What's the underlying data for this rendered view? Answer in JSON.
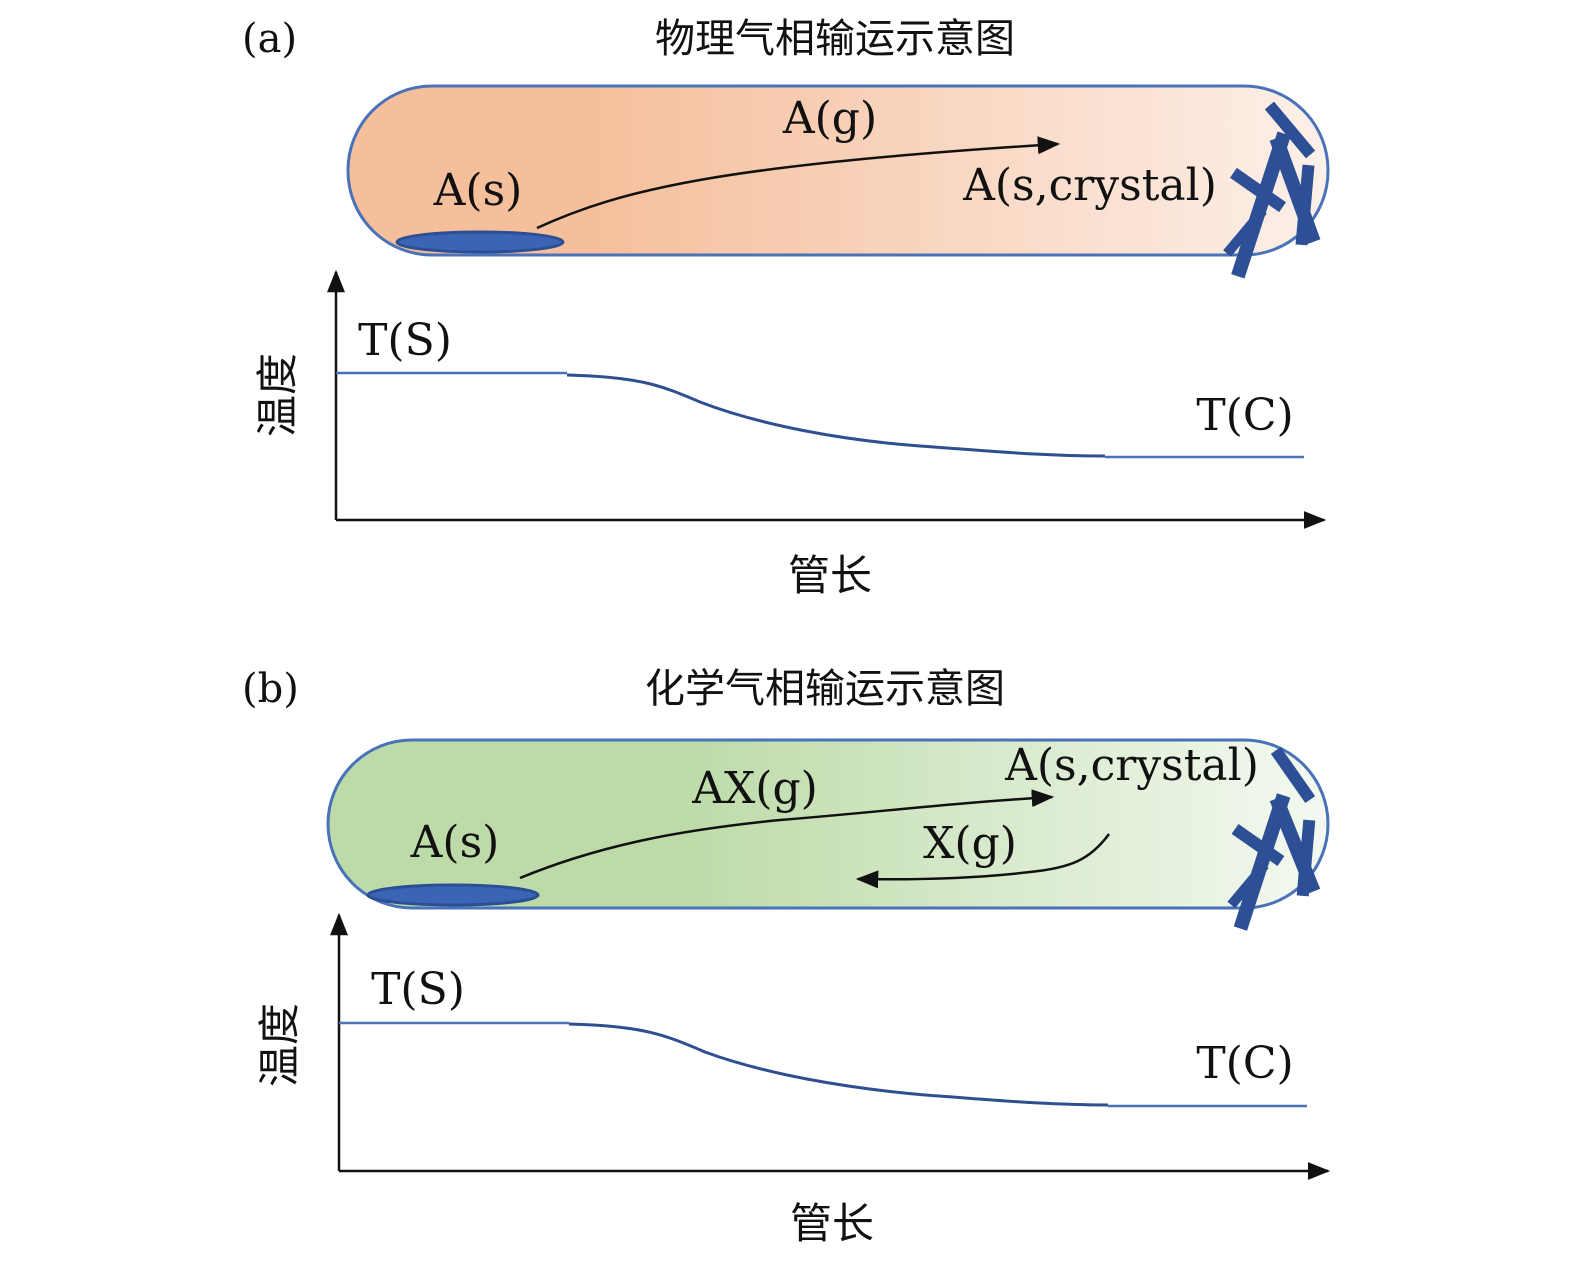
{
  "panels": [
    {
      "tag": "(a)",
      "title": "物理气相输运示意图",
      "colors": {
        "tube_hot": "#f5bf9c",
        "tube_cold": "#fdf0e9"
      },
      "labels": {
        "source": "A(s)",
        "gas": "A(g)",
        "crystal": "A(s,crystal)"
      },
      "graph": {
        "ylabel": "温度",
        "xlabel": "管长",
        "t_hot": "T(S)",
        "t_cold": "T(C)"
      }
    },
    {
      "tag": "(b)",
      "title": "化学气相输运示意图",
      "colors": {
        "tube_hot": "#bcdba8",
        "tube_cold": "#f4f9f1"
      },
      "labels": {
        "source": "A(s)",
        "gas": "AX(g)",
        "crystal": "A(s,crystal)",
        "return_gas": "X(g)"
      },
      "graph": {
        "ylabel": "温度",
        "xlabel": "管长",
        "t_hot": "T(S)",
        "t_cold": "T(C)"
      }
    }
  ],
  "colors": {
    "border": "#4a72b8",
    "source": "#3b64b5",
    "crystal": "#2c4f96",
    "curve": "#2f4f91"
  }
}
